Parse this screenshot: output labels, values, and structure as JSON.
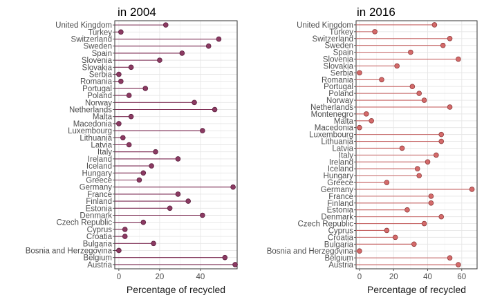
{
  "chart_data": [
    {
      "type": "lollipop",
      "title": "in 2004",
      "xlabel": "Percentage of recycled",
      "ylabel": "",
      "xlim": [
        -2,
        58
      ],
      "xticks": [
        0,
        20,
        40
      ],
      "grid": true,
      "colors": {
        "point": "#8b3a62",
        "stem": "#7a2850",
        "point_stroke": "#5c1f3f"
      },
      "categories": [
        "United Kingdom",
        "Turkey",
        "Switzerland",
        "Sweden",
        "Spain",
        "Slovenia",
        "Slovakia",
        "Serbia",
        "Romania",
        "Portugal",
        "Poland",
        "Norway",
        "Netherlands",
        "Malta",
        "Macedonia",
        "Luxembourg",
        "Lithuania",
        "Latvia",
        "Italy",
        "Ireland",
        "Iceland",
        "Hungary",
        "Greece",
        "Germany",
        "France",
        "Finland",
        "Estonia",
        "Denmark",
        "Czech Republic",
        "Cyprus",
        "Croatia",
        "Bulgaria",
        "Bosnia and Herzegovina",
        "Belgium",
        "Austria"
      ],
      "values": [
        23,
        1,
        49,
        44,
        31,
        20,
        6,
        0,
        1,
        13,
        5,
        37,
        47,
        6,
        0,
        41,
        2,
        5,
        18,
        29,
        16,
        12,
        10,
        56,
        29,
        34,
        25,
        41,
        12,
        3,
        3,
        17,
        0,
        52,
        57
      ]
    },
    {
      "type": "lollipop",
      "title": "in 2016",
      "xlabel": "Percentage of recycled",
      "ylabel": "",
      "xlim": [
        -2,
        69
      ],
      "xticks": [
        0,
        20,
        40,
        60
      ],
      "grid": true,
      "colors": {
        "point": "#d46a6a",
        "stem": "#c46060",
        "point_stroke": "#8e3a3a"
      },
      "categories": [
        "United Kingdom",
        "Turkey",
        "Switzerland",
        "Sweden",
        "Spain",
        "Slovenia",
        "Slovakia",
        "Serbia",
        "Romania",
        "Portugal",
        "Poland",
        "Norway",
        "Netherlands",
        "Montenegro",
        "Malta",
        "Macedonia",
        "Luxembourg",
        "Lithuania",
        "Latvia",
        "Italy",
        "Ireland",
        "Iceland",
        "Hungary",
        "Greece",
        "Germany",
        "France",
        "Finland",
        "Estonia",
        "Denmark",
        "Czech Republic",
        "Cyprus",
        "Croatia",
        "Bulgaria",
        "Bosnia and Herzegovina",
        "Belgium",
        "Austria"
      ],
      "values": [
        44,
        9,
        53,
        49,
        30,
        58,
        22,
        0,
        13,
        31,
        35,
        38,
        53,
        4,
        7,
        0,
        48,
        48,
        25,
        45,
        40,
        34,
        35,
        16,
        66,
        42,
        42,
        28,
        48,
        38,
        16,
        21,
        32,
        0,
        53,
        58
      ]
    }
  ]
}
